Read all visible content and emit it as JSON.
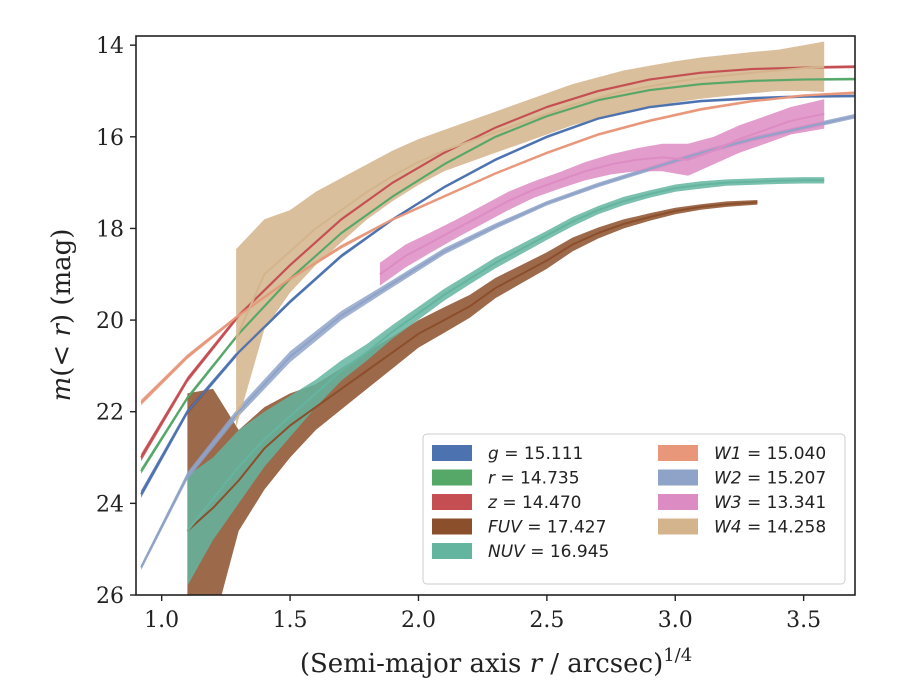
{
  "chart_data": {
    "type": "line",
    "xlabel": "(Semi-major axis r / arcsec)^1/4",
    "xlabel_parts": {
      "pre": "(Semi-major axis ",
      "var": "r",
      "mid": " / arcsec)",
      "sup": "1/4"
    },
    "ylabel": "m(< r) (mag)",
    "ylabel_parts": {
      "var": "m",
      "open": "(< ",
      "var2": "r",
      "close": ") (mag)"
    },
    "xlim": [
      0.9,
      3.7
    ],
    "ylim": [
      26,
      13.8
    ],
    "y_inverted": true,
    "xticks": [
      1.0,
      1.5,
      2.0,
      2.5,
      3.0,
      3.5
    ],
    "xtick_labels": [
      "1.0",
      "1.5",
      "2.0",
      "2.5",
      "3.0",
      "3.5"
    ],
    "yticks": [
      14,
      16,
      18,
      20,
      22,
      24,
      26
    ],
    "ytick_labels": [
      "14",
      "16",
      "18",
      "20",
      "22",
      "24",
      "26"
    ],
    "grid": false,
    "legend_position": "lower-right",
    "series": [
      {
        "name": "g",
        "value": "15.111",
        "color": "#4c72b0",
        "x": [
          0.92,
          1.1,
          1.3,
          1.5,
          1.7,
          1.9,
          2.1,
          2.3,
          2.5,
          2.7,
          2.9,
          3.1,
          3.3,
          3.5,
          3.7
        ],
        "y": [
          23.8,
          22.0,
          20.7,
          19.6,
          18.6,
          17.8,
          17.1,
          16.5,
          16.0,
          15.6,
          15.35,
          15.22,
          15.16,
          15.12,
          15.11
        ],
        "halfwidth": [
          0.08,
          0.06,
          0.05,
          0.04,
          0.04,
          0.03,
          0.03,
          0.03,
          0.03,
          0.03,
          0.03,
          0.03,
          0.03,
          0.03,
          0.03
        ]
      },
      {
        "name": "r",
        "value": "14.735",
        "color": "#55a868",
        "x": [
          0.92,
          1.1,
          1.3,
          1.5,
          1.7,
          1.9,
          2.1,
          2.3,
          2.5,
          2.7,
          2.9,
          3.1,
          3.3,
          3.5,
          3.7
        ],
        "y": [
          23.3,
          21.7,
          20.3,
          19.1,
          18.1,
          17.3,
          16.6,
          16.0,
          15.55,
          15.2,
          14.98,
          14.85,
          14.78,
          14.75,
          14.74
        ],
        "halfwidth": [
          0.06,
          0.05,
          0.04,
          0.04,
          0.03,
          0.03,
          0.03,
          0.03,
          0.03,
          0.03,
          0.03,
          0.03,
          0.03,
          0.03,
          0.03
        ]
      },
      {
        "name": "z",
        "value": "14.470",
        "color": "#c44e52",
        "x": [
          0.92,
          1.1,
          1.3,
          1.5,
          1.7,
          1.9,
          2.1,
          2.3,
          2.5,
          2.7,
          2.9,
          3.1,
          3.3,
          3.5,
          3.7
        ],
        "y": [
          23.0,
          21.3,
          19.9,
          18.8,
          17.8,
          17.0,
          16.35,
          15.8,
          15.35,
          15.0,
          14.75,
          14.6,
          14.52,
          14.49,
          14.47
        ],
        "halfwidth": [
          0.08,
          0.06,
          0.05,
          0.04,
          0.04,
          0.03,
          0.03,
          0.03,
          0.03,
          0.03,
          0.03,
          0.03,
          0.03,
          0.03,
          0.03
        ]
      },
      {
        "name": "FUV",
        "value": "17.427",
        "color": "#8c4f2b",
        "x": [
          1.1,
          1.2,
          1.3,
          1.4,
          1.5,
          1.6,
          1.7,
          1.8,
          1.9,
          2.0,
          2.1,
          2.2,
          2.3,
          2.4,
          2.5,
          2.6,
          2.7,
          2.8,
          2.9,
          3.0,
          3.1,
          3.2,
          3.32
        ],
        "y": [
          24.6,
          24.1,
          23.5,
          22.8,
          22.3,
          21.9,
          21.5,
          21.1,
          20.7,
          20.3,
          20.0,
          19.7,
          19.3,
          19.0,
          18.7,
          18.35,
          18.1,
          17.9,
          17.75,
          17.62,
          17.53,
          17.47,
          17.43
        ],
        "halfwidth": [
          3.0,
          2.6,
          1.1,
          0.9,
          0.7,
          0.5,
          0.45,
          0.4,
          0.35,
          0.3,
          0.28,
          0.25,
          0.22,
          0.2,
          0.18,
          0.15,
          0.12,
          0.1,
          0.08,
          0.07,
          0.06,
          0.06,
          0.05
        ]
      },
      {
        "name": "NUV",
        "value": "16.945",
        "color": "#64b5a0",
        "x": [
          1.1,
          1.2,
          1.3,
          1.4,
          1.5,
          1.6,
          1.7,
          1.8,
          1.9,
          2.0,
          2.1,
          2.2,
          2.3,
          2.4,
          2.5,
          2.6,
          2.7,
          2.8,
          2.9,
          3.0,
          3.1,
          3.2,
          3.3,
          3.4,
          3.5,
          3.58
        ],
        "y": [
          24.6,
          23.9,
          23.2,
          22.6,
          22.1,
          21.6,
          21.1,
          20.7,
          20.25,
          19.85,
          19.45,
          19.1,
          18.75,
          18.45,
          18.15,
          17.85,
          17.6,
          17.4,
          17.25,
          17.12,
          17.05,
          17.0,
          16.98,
          16.96,
          16.95,
          16.95
        ],
        "halfwidth": [
          1.2,
          0.9,
          0.8,
          0.6,
          0.45,
          0.3,
          0.22,
          0.18,
          0.15,
          0.14,
          0.13,
          0.12,
          0.12,
          0.11,
          0.1,
          0.1,
          0.09,
          0.09,
          0.08,
          0.08,
          0.08,
          0.07,
          0.07,
          0.07,
          0.07,
          0.07
        ]
      },
      {
        "name": "W1",
        "value": "15.040",
        "color": "#e8977a",
        "x": [
          0.92,
          1.1,
          1.3,
          1.5,
          1.7,
          1.9,
          2.1,
          2.3,
          2.5,
          2.7,
          2.9,
          3.1,
          3.3,
          3.5,
          3.7
        ],
        "y": [
          21.8,
          20.8,
          19.9,
          19.1,
          18.4,
          17.8,
          17.3,
          16.8,
          16.35,
          15.95,
          15.65,
          15.4,
          15.22,
          15.1,
          15.04
        ],
        "halfwidth": [
          0.06,
          0.05,
          0.04,
          0.04,
          0.04,
          0.03,
          0.03,
          0.03,
          0.03,
          0.03,
          0.03,
          0.03,
          0.03,
          0.03,
          0.03
        ]
      },
      {
        "name": "W2",
        "value": "15.207",
        "color": "#8fa3c9",
        "x": [
          0.92,
          1.1,
          1.3,
          1.5,
          1.7,
          1.9,
          2.1,
          2.3,
          2.5,
          2.7,
          2.9,
          3.1,
          3.3,
          3.5,
          3.7
        ],
        "y": [
          25.4,
          23.4,
          22.0,
          20.8,
          19.9,
          19.2,
          18.5,
          17.95,
          17.45,
          17.05,
          16.7,
          16.35,
          16.05,
          15.8,
          15.55
        ],
        "halfwidth": [
          0.06,
          0.08,
          0.1,
          0.12,
          0.1,
          0.08,
          0.07,
          0.06,
          0.05,
          0.05,
          0.05,
          0.05,
          0.05,
          0.05,
          0.05
        ]
      },
      {
        "name": "W3",
        "value": "13.341",
        "color": "#dd8cc3",
        "x": [
          1.85,
          1.95,
          2.05,
          2.15,
          2.25,
          2.35,
          2.45,
          2.55,
          2.65,
          2.75,
          2.85,
          2.95,
          3.05,
          3.15,
          3.25,
          3.35,
          3.45,
          3.58
        ],
        "y": [
          19.0,
          18.6,
          18.3,
          18.0,
          17.7,
          17.4,
          17.15,
          16.95,
          16.75,
          16.6,
          16.5,
          16.45,
          16.5,
          16.3,
          16.05,
          15.85,
          15.65,
          15.5
        ],
        "halfwidth": [
          0.25,
          0.25,
          0.22,
          0.2,
          0.2,
          0.2,
          0.18,
          0.18,
          0.2,
          0.22,
          0.25,
          0.3,
          0.35,
          0.3,
          0.3,
          0.3,
          0.3,
          0.32
        ]
      },
      {
        "name": "W4",
        "value": "14.258",
        "color": "#d4b48c",
        "x": [
          1.29,
          1.4,
          1.5,
          1.6,
          1.7,
          1.8,
          1.9,
          2.0,
          2.1,
          2.2,
          2.3,
          2.4,
          2.5,
          2.6,
          2.7,
          2.8,
          2.9,
          3.0,
          3.1,
          3.2,
          3.3,
          3.4,
          3.5,
          3.58
        ],
        "y": [
          20.4,
          19.0,
          18.5,
          18.0,
          17.6,
          17.2,
          16.85,
          16.55,
          16.3,
          16.1,
          15.9,
          15.7,
          15.5,
          15.3,
          15.15,
          15.0,
          14.9,
          14.8,
          14.72,
          14.66,
          14.6,
          14.55,
          14.5,
          14.47
        ],
        "halfwidth": [
          1.95,
          1.2,
          0.9,
          0.8,
          0.7,
          0.6,
          0.55,
          0.5,
          0.45,
          0.45,
          0.45,
          0.45,
          0.45,
          0.45,
          0.45,
          0.45,
          0.45,
          0.45,
          0.45,
          0.45,
          0.45,
          0.45,
          0.5,
          0.55
        ]
      }
    ]
  }
}
